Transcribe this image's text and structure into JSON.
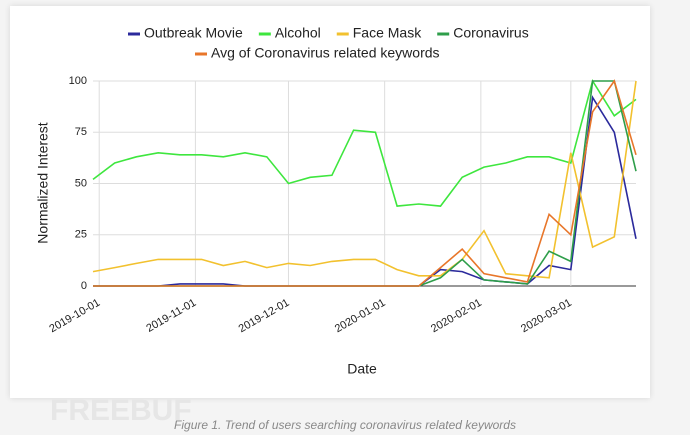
{
  "chart_data": {
    "type": "line",
    "x_label": "Date",
    "y_label": "Normalized Interest",
    "x": [
      "2019-09-29",
      "2019-10-06",
      "2019-10-13",
      "2019-10-20",
      "2019-10-27",
      "2019-11-03",
      "2019-11-10",
      "2019-11-17",
      "2019-11-24",
      "2019-12-01",
      "2019-12-08",
      "2019-12-15",
      "2019-12-22",
      "2019-12-29",
      "2020-01-05",
      "2020-01-12",
      "2020-01-19",
      "2020-01-26",
      "2020-02-02",
      "2020-02-09",
      "2020-02-16",
      "2020-02-23",
      "2020-03-01",
      "2020-03-08",
      "2020-03-15",
      "2020-03-22"
    ],
    "xlim": [
      "2019-09-29",
      "2020-03-22"
    ],
    "xticks": [
      "2019-10-01",
      "2019-11-01",
      "2019-12-01",
      "2020-01-01",
      "2020-02-01",
      "2020-03-01"
    ],
    "ylim": [
      0,
      100
    ],
    "yticks": [
      0,
      25,
      50,
      75,
      100
    ],
    "grid": true,
    "series": [
      {
        "name": "Outbreak Movie",
        "color": "#2b2a9c",
        "values": [
          0,
          0,
          0,
          0,
          1,
          1,
          1,
          0,
          0,
          0,
          0,
          0,
          0,
          0,
          0,
          0,
          8,
          7,
          3,
          2,
          1,
          10,
          8,
          92,
          75,
          23
        ]
      },
      {
        "name": "Alcohol",
        "color": "#3ee63e",
        "values": [
          52,
          60,
          63,
          65,
          64,
          64,
          63,
          65,
          63,
          50,
          53,
          54,
          76,
          75,
          39,
          40,
          39,
          53,
          58,
          60,
          63,
          63,
          60,
          100,
          83,
          91
        ]
      },
      {
        "name": "Face Mask",
        "color": "#f2c12e",
        "values": [
          7,
          9,
          11,
          13,
          13,
          13,
          10,
          12,
          9,
          11,
          10,
          12,
          13,
          13,
          8,
          5,
          5,
          13,
          27,
          6,
          5,
          4,
          65,
          19,
          24,
          100
        ]
      },
      {
        "name": "Coronavirus",
        "color": "#2e9e4a",
        "values": [
          0,
          0,
          0,
          0,
          0,
          0,
          0,
          0,
          0,
          0,
          0,
          0,
          0,
          0,
          0,
          0,
          4,
          13,
          3,
          2,
          1,
          17,
          12,
          100,
          100,
          56
        ]
      },
      {
        "name": "Avg of Coronavirus related keywords",
        "color": "#e8762a",
        "values": [
          0,
          0,
          0,
          0,
          0,
          0,
          0,
          0,
          0,
          0,
          0,
          0,
          0,
          0,
          0,
          0,
          9,
          18,
          6,
          4,
          2,
          35,
          25,
          85,
          100,
          64
        ]
      }
    ]
  },
  "caption": "Figure 1. Trend of users searching coronavirus related keywords",
  "watermark": "FREEBUF"
}
